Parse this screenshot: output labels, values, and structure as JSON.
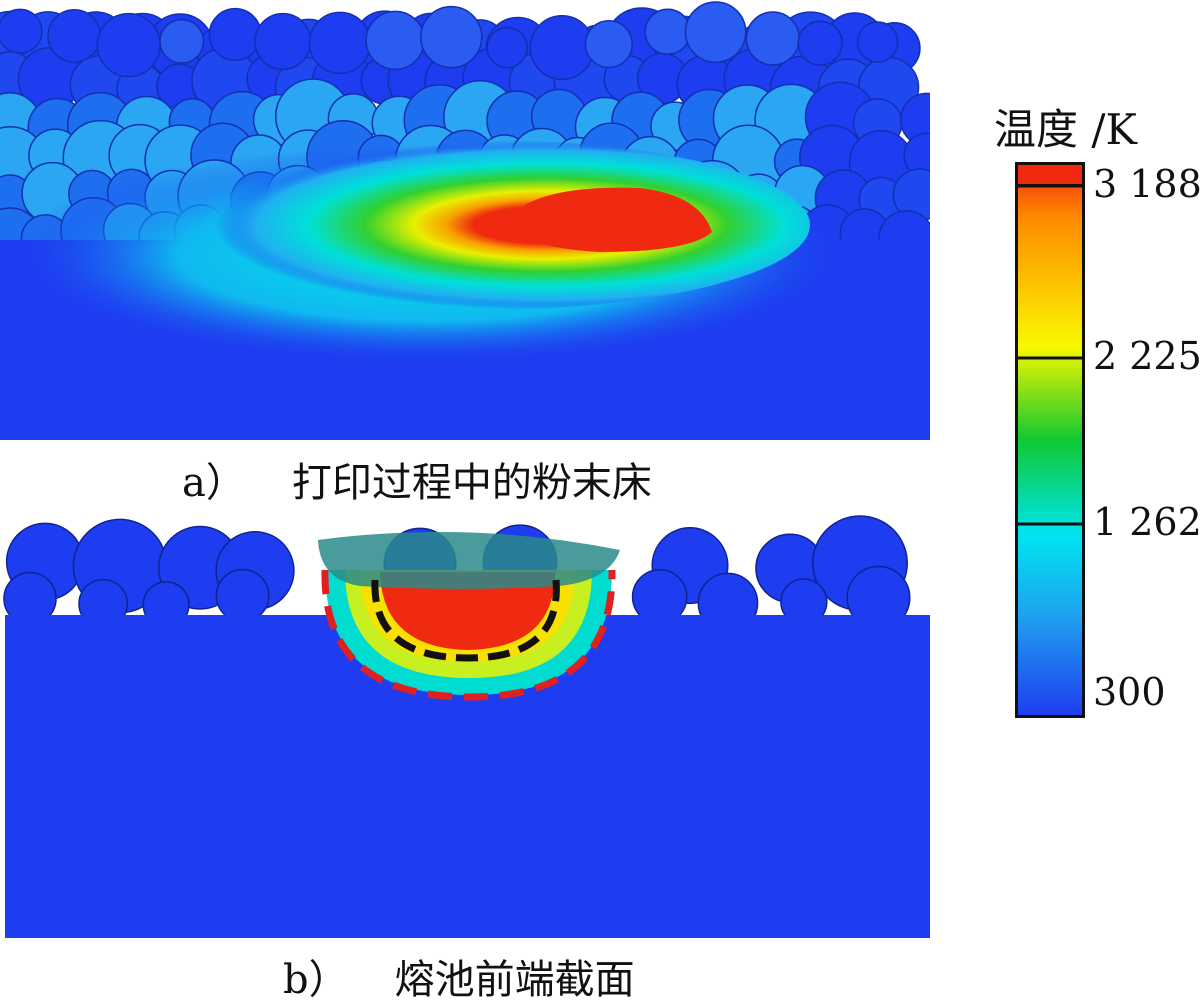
{
  "figure": {
    "panel_a": {
      "label": "a）",
      "caption": "打印过程中的粉末床"
    },
    "panel_b": {
      "label": "b）",
      "caption": "熔池前端截面"
    }
  },
  "legend": {
    "title": "温度 /K",
    "ticks": [
      {
        "value": 3188,
        "text": "3 188"
      },
      {
        "value": 2225,
        "text": "2 225"
      },
      {
        "value": 1262,
        "text": "1 262"
      },
      {
        "value": 300,
        "text": "300"
      }
    ],
    "colormap": [
      "#1e3cf0",
      "#00e5f0",
      "#10c830",
      "#f8f800",
      "#ff8c00",
      "#f02a10"
    ]
  },
  "colors": {
    "substrate_blue": "#1e3cf0",
    "melt_red": "#f02a10",
    "boundary_black": "#111111",
    "boundary_red": "#e02020"
  }
}
